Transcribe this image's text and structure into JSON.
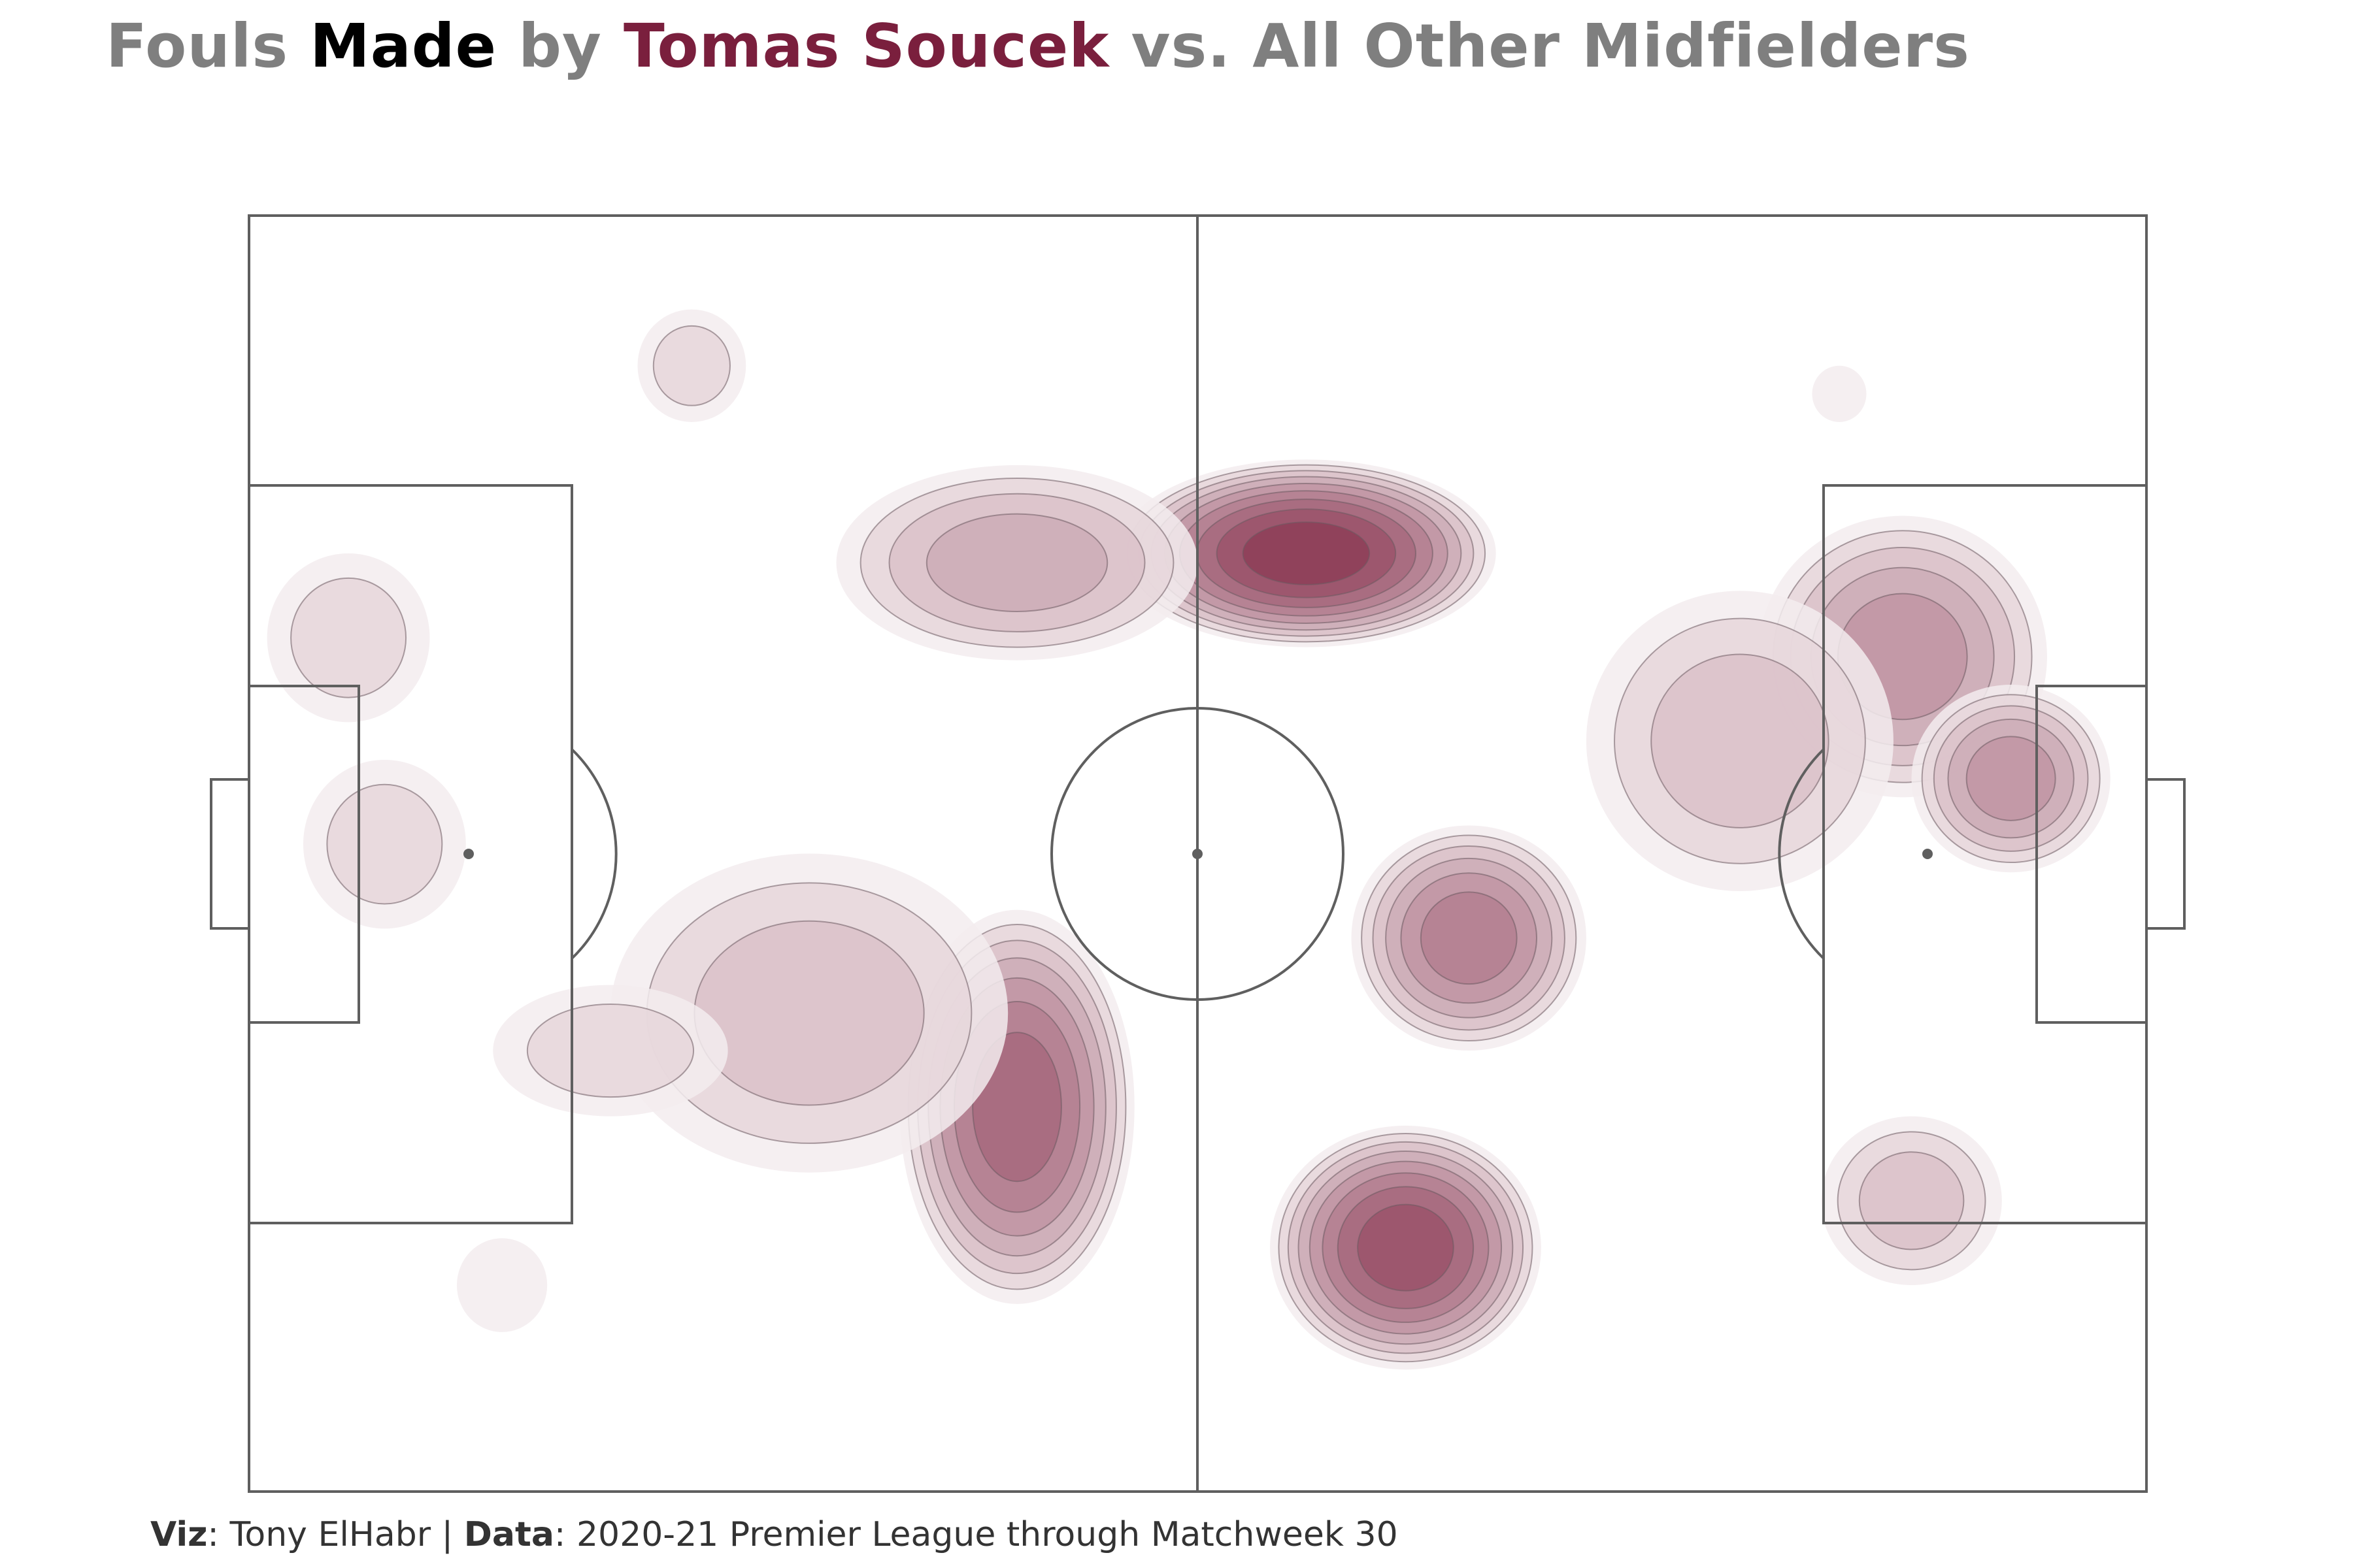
{
  "title": {
    "part1": "Fouls ",
    "part2": "Made",
    "part3": " by ",
    "part4": "Tomas Soucek",
    "part5": " vs. All Other Midfielders"
  },
  "caption": {
    "viz_label": "Viz",
    "viz_value": ": Tony ElHabr | ",
    "data_label": "Data",
    "data_value": ": 2020-21 Premier League through Matchweek 30"
  },
  "colors": {
    "title_grey": "#7f7f7f",
    "title_emphasis": "#000000",
    "player": "#7a1f3d",
    "pitch_lines": "#5f5f5f",
    "density_low": "#f3ecee",
    "density_high": "#8e3e58"
  },
  "chart_data": {
    "type": "heatmap",
    "title": "Fouls Made by Tomas Soucek vs. All Other Midfielders",
    "xlabel": "",
    "ylabel": "",
    "xlim": [
      0,
      105
    ],
    "ylim": [
      0,
      68
    ],
    "grid": false,
    "legend": "none",
    "contour_levels": 9,
    "hotspots": [
      {
        "x": 58.5,
        "y": 50.0,
        "intensity": 9,
        "sx": 10.5,
        "sy": 5.0
      },
      {
        "x": 42.5,
        "y": 49.5,
        "intensity": 4,
        "sx": 10.0,
        "sy": 5.2
      },
      {
        "x": 42.5,
        "y": 20.5,
        "intensity": 7,
        "sx": 6.5,
        "sy": 10.5
      },
      {
        "x": 31.0,
        "y": 25.5,
        "intensity": 3,
        "sx": 11.0,
        "sy": 8.5
      },
      {
        "x": 20.0,
        "y": 23.5,
        "intensity": 2,
        "sx": 6.5,
        "sy": 3.5
      },
      {
        "x": 64.0,
        "y": 13.0,
        "intensity": 8,
        "sx": 7.5,
        "sy": 6.5
      },
      {
        "x": 67.5,
        "y": 29.5,
        "intensity": 6,
        "sx": 6.5,
        "sy": 6.0
      },
      {
        "x": 91.5,
        "y": 44.5,
        "intensity": 5,
        "sx": 8.0,
        "sy": 7.5
      },
      {
        "x": 97.5,
        "y": 38.0,
        "intensity": 5,
        "sx": 5.5,
        "sy": 5.0
      },
      {
        "x": 82.5,
        "y": 40.0,
        "intensity": 3,
        "sx": 8.5,
        "sy": 8.0
      },
      {
        "x": 92.0,
        "y": 15.5,
        "intensity": 3,
        "sx": 5.0,
        "sy": 4.5
      },
      {
        "x": 5.5,
        "y": 45.5,
        "intensity": 2,
        "sx": 4.5,
        "sy": 4.5
      },
      {
        "x": 7.5,
        "y": 34.5,
        "intensity": 2,
        "sx": 4.5,
        "sy": 4.5
      },
      {
        "x": 24.5,
        "y": 60.0,
        "intensity": 2,
        "sx": 3.0,
        "sy": 3.0
      },
      {
        "x": 14.0,
        "y": 11.0,
        "intensity": 1,
        "sx": 2.5,
        "sy": 2.5
      },
      {
        "x": 88.0,
        "y": 58.5,
        "intensity": 1,
        "sx": 1.5,
        "sy": 1.5
      }
    ]
  }
}
